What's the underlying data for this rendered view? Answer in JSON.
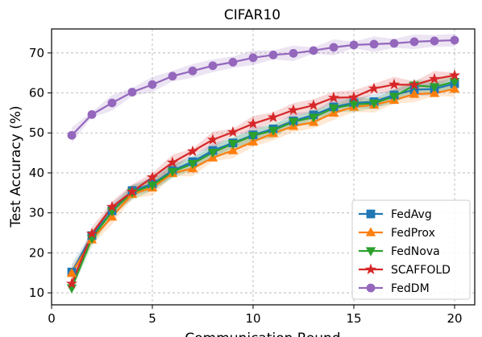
{
  "chart_data": {
    "type": "line",
    "title": "CIFAR10",
    "xlabel": "Communication Round",
    "ylabel": "Test Accuracy (%)",
    "xlim": [
      0,
      21
    ],
    "ylim": [
      7,
      76
    ],
    "xticks": [
      0,
      5,
      10,
      15,
      20
    ],
    "yticks": [
      10,
      20,
      30,
      40,
      50,
      60,
      70
    ],
    "grid": true,
    "legend_position": "lower-right",
    "x": [
      1,
      2,
      3,
      4,
      5,
      6,
      7,
      8,
      9,
      10,
      11,
      12,
      13,
      14,
      15,
      16,
      17,
      18,
      19,
      20
    ],
    "series": [
      {
        "name": "FedAvg",
        "color": "#1f77b4",
        "marker": "square",
        "values": [
          15.2,
          24.3,
          30.5,
          35.6,
          37.2,
          40.6,
          42.8,
          45.6,
          47.5,
          49.5,
          51.0,
          53.0,
          54.5,
          56.5,
          57.5,
          57.8,
          59.5,
          60.8,
          61.0,
          62.3
        ]
      },
      {
        "name": "FedProx",
        "color": "#ff7f0e",
        "marker": "triangle-up",
        "values": [
          14.9,
          23.3,
          29.0,
          34.7,
          36.3,
          39.9,
          41.1,
          43.8,
          45.6,
          47.8,
          49.9,
          51.7,
          52.7,
          55.0,
          56.5,
          57.0,
          58.2,
          59.7,
          59.9,
          61.0
        ]
      },
      {
        "name": "FedNova",
        "color": "#2ca02c",
        "marker": "triangle-down",
        "values": [
          11.2,
          23.6,
          30.4,
          35.1,
          36.9,
          40.3,
          42.3,
          45.1,
          47.3,
          49.3,
          50.6,
          52.8,
          53.9,
          56.2,
          57.1,
          57.4,
          59.1,
          61.9,
          61.5,
          62.8
        ]
      },
      {
        "name": "SCAFFOLD",
        "color": "#d62728",
        "marker": "star",
        "values": [
          12.3,
          24.8,
          31.5,
          35.3,
          38.9,
          42.6,
          45.4,
          48.3,
          50.2,
          52.3,
          53.9,
          55.7,
          56.9,
          58.8,
          58.9,
          61.1,
          62.1,
          62.0,
          63.5,
          64.4
        ]
      },
      {
        "name": "FedDM",
        "color": "#9467bd",
        "marker": "circle",
        "values": [
          49.4,
          54.6,
          57.5,
          60.2,
          62.1,
          64.2,
          65.5,
          66.8,
          67.7,
          68.8,
          69.5,
          69.9,
          70.6,
          71.4,
          72.0,
          72.2,
          72.4,
          72.8,
          73.0,
          73.2
        ]
      }
    ]
  }
}
